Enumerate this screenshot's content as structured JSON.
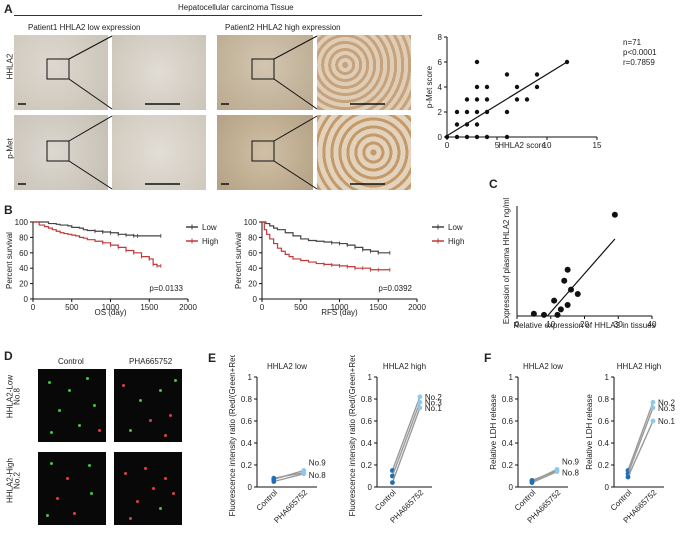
{
  "panel_a": {
    "letter": "A",
    "title": "Hepatocellular carcinoma Tissue",
    "col1": "Patient1 HHLA2 low expression",
    "col2": "Patient2 HHLA2 high expression",
    "row1": "HHLA2",
    "row2": "p-Met"
  },
  "panel_b": {
    "letter": "B"
  },
  "panel_c": {
    "letter": "C"
  },
  "panel_d": {
    "letter": "D",
    "col1": "Control",
    "col2": "PHA665752",
    "row1": "HHLA2-Low",
    "row1_sub": "No.8",
    "row2": "HHLA2-High",
    "row2_sub": "No.2"
  },
  "panel_e": {
    "letter": "E"
  },
  "panel_f": {
    "letter": "F"
  },
  "colors": {
    "low": "#444444",
    "high": "#c0393b",
    "light_blue": "#8fc8ec",
    "dark_blue": "#1f6fb4",
    "green": "#2e8b2e",
    "red": "#e03030"
  },
  "chart_data": [
    {
      "id": "scatter_a",
      "type": "scatter",
      "xlabel": "HHLA2 score",
      "ylabel": "p-Met score",
      "xlim": [
        0,
        15
      ],
      "ylim": [
        0,
        8
      ],
      "xticks": [
        0,
        5,
        10,
        15
      ],
      "yticks": [
        0,
        2,
        4,
        6,
        8
      ],
      "annotations": [
        "n=71",
        "p<0.0001",
        "r=0.7859"
      ],
      "points": [
        [
          0,
          0
        ],
        [
          1,
          0
        ],
        [
          2,
          0
        ],
        [
          3,
          0
        ],
        [
          4,
          0
        ],
        [
          6,
          0
        ],
        [
          1,
          1
        ],
        [
          2,
          1
        ],
        [
          3,
          1
        ],
        [
          1,
          2
        ],
        [
          2,
          2
        ],
        [
          3,
          2
        ],
        [
          4,
          2
        ],
        [
          2,
          3
        ],
        [
          3,
          3
        ],
        [
          4,
          3
        ],
        [
          3,
          4
        ],
        [
          4,
          4
        ],
        [
          6,
          2
        ],
        [
          7,
          3
        ],
        [
          7,
          4
        ],
        [
          8,
          3
        ],
        [
          9,
          4
        ],
        [
          9,
          5
        ],
        [
          6,
          5
        ],
        [
          12,
          6
        ],
        [
          3,
          6
        ]
      ],
      "fit": [
        [
          0,
          0.1
        ],
        [
          12,
          6
        ]
      ]
    },
    {
      "id": "os_b",
      "type": "line",
      "xlabel": "OS (day)",
      "ylabel": "Percent survival",
      "xlim": [
        0,
        2000
      ],
      "ylim": [
        0,
        100
      ],
      "xticks": [
        0,
        500,
        1000,
        1500,
        2000
      ],
      "yticks": [
        0,
        20,
        40,
        60,
        80,
        100
      ],
      "annotation": "p=0.0133",
      "series": [
        {
          "name": "Low",
          "x": [
            0,
            100,
            200,
            300,
            350,
            450,
            500,
            600,
            650,
            700,
            800,
            900,
            1000,
            1100,
            1200,
            1300,
            1350,
            1650
          ],
          "y": [
            100,
            100,
            98,
            97,
            96,
            95,
            93,
            92,
            90,
            89,
            88,
            87,
            86,
            84,
            83,
            82,
            82,
            82
          ]
        },
        {
          "name": "High",
          "x": [
            0,
            80,
            150,
            200,
            250,
            300,
            350,
            400,
            450,
            500,
            550,
            600,
            650,
            700,
            800,
            900,
            1000,
            1100,
            1200,
            1300,
            1400,
            1500,
            1550,
            1600,
            1650
          ],
          "y": [
            100,
            96,
            94,
            92,
            90,
            88,
            86,
            85,
            84,
            83,
            82,
            80,
            79,
            77,
            75,
            73,
            70,
            67,
            63,
            60,
            55,
            52,
            45,
            43,
            43
          ]
        }
      ]
    },
    {
      "id": "rfs_b",
      "type": "line",
      "xlabel": "RFS (day)",
      "ylabel": "Percent survival",
      "xlim": [
        0,
        2000
      ],
      "ylim": [
        0,
        100
      ],
      "xticks": [
        0,
        500,
        1000,
        1500,
        2000
      ],
      "yticks": [
        0,
        20,
        40,
        60,
        80,
        100
      ],
      "annotation": "p=0.0392",
      "series": [
        {
          "name": "Low",
          "x": [
            0,
            50,
            100,
            150,
            200,
            300,
            400,
            500,
            600,
            700,
            800,
            900,
            1000,
            1100,
            1200,
            1300,
            1400,
            1500,
            1650
          ],
          "y": [
            100,
            98,
            95,
            92,
            90,
            86,
            82,
            78,
            76,
            75,
            74,
            73,
            72,
            70,
            67,
            64,
            62,
            60,
            60
          ]
        },
        {
          "name": "High",
          "x": [
            0,
            30,
            60,
            100,
            150,
            200,
            250,
            300,
            350,
            400,
            500,
            600,
            700,
            800,
            900,
            1000,
            1100,
            1200,
            1300,
            1400,
            1500,
            1650
          ],
          "y": [
            100,
            90,
            84,
            78,
            72,
            66,
            62,
            58,
            55,
            52,
            50,
            48,
            46,
            45,
            44,
            43,
            42,
            40,
            40,
            38,
            38,
            38
          ]
        }
      ]
    },
    {
      "id": "scatter_c",
      "type": "scatter",
      "xlabel": "Relative expression of HHLA2 in tissues",
      "ylabel": "Expression of plasma HHLA2 ng/ml",
      "xlim": [
        0,
        40
      ],
      "ylim": [
        0,
        5
      ],
      "xticks": [
        0,
        10,
        20,
        30,
        40
      ],
      "yticks": [],
      "points": [
        [
          5,
          0.1
        ],
        [
          8,
          0.05
        ],
        [
          11,
          0.7
        ],
        [
          13,
          0.3
        ],
        [
          14,
          1.6
        ],
        [
          15,
          2.1
        ],
        [
          16,
          1.2
        ],
        [
          18,
          1.0
        ],
        [
          15,
          0.5
        ],
        [
          29,
          4.6
        ],
        [
          12,
          0.05
        ]
      ],
      "fit": [
        [
          9,
          0
        ],
        [
          29,
          3.5
        ]
      ]
    },
    {
      "id": "e_low",
      "type": "scatter",
      "title": "HHLA2 low",
      "ylabel": "Fluorescence intensity ratio (Red/(Green+Red))",
      "ylim": [
        0,
        1.0
      ],
      "yticks": [
        0,
        0.2,
        0.4,
        0.6,
        0.8,
        1.0
      ],
      "categories": [
        "Control",
        "PHA665752"
      ],
      "series": [
        {
          "name": "No.9",
          "values": [
            0.07,
            0.15
          ]
        },
        {
          "name": "No.8",
          "values": [
            0.05,
            0.12
          ]
        },
        {
          "name": "",
          "values": [
            0.08,
            0.13
          ]
        }
      ]
    },
    {
      "id": "e_high",
      "type": "scatter",
      "title": "HHLA2 high",
      "ylabel": "Fluorescence intensity ratio (Red/(Green+Red))",
      "ylim": [
        0,
        1.0
      ],
      "yticks": [
        0,
        0.2,
        0.4,
        0.6,
        0.8,
        1.0
      ],
      "categories": [
        "Control",
        "PHA665752"
      ],
      "series": [
        {
          "name": "No.2",
          "values": [
            0.15,
            0.82
          ]
        },
        {
          "name": "No.3",
          "values": [
            0.1,
            0.77
          ]
        },
        {
          "name": "No.1",
          "values": [
            0.04,
            0.72
          ]
        }
      ]
    },
    {
      "id": "f_low",
      "type": "scatter",
      "title": "HHLA2 low",
      "ylabel": "Relative LDH release",
      "ylim": [
        0,
        1.0
      ],
      "yticks": [
        0,
        0.2,
        0.4,
        0.6,
        0.8,
        1.0
      ],
      "categories": [
        "Control",
        "PHA665752"
      ],
      "series": [
        {
          "name": "No.9",
          "values": [
            0.05,
            0.16
          ]
        },
        {
          "name": "No.8",
          "values": [
            0.04,
            0.14
          ]
        },
        {
          "name": "",
          "values": [
            0.06,
            0.15
          ]
        }
      ]
    },
    {
      "id": "f_high",
      "type": "scatter",
      "title": "HHLA2 High",
      "ylabel": "Relative LDH release",
      "ylim": [
        0,
        1.0
      ],
      "yticks": [
        0,
        0.2,
        0.4,
        0.6,
        0.8,
        1.0
      ],
      "categories": [
        "Control",
        "PHA665752"
      ],
      "series": [
        {
          "name": "No.2",
          "values": [
            0.15,
            0.77
          ]
        },
        {
          "name": "No.3",
          "values": [
            0.12,
            0.72
          ]
        },
        {
          "name": "No.1",
          "values": [
            0.09,
            0.6
          ]
        }
      ]
    }
  ]
}
